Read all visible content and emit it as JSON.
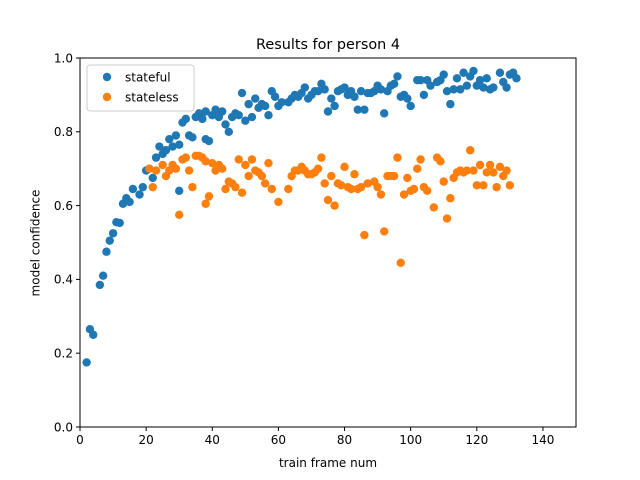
{
  "chart_data": {
    "type": "scatter",
    "title": "Results for person 4",
    "xlabel": "train frame num",
    "ylabel": "model confidence",
    "xlim": [
      0,
      150
    ],
    "ylim": [
      0.0,
      1.0
    ],
    "xticks": [
      "0",
      "20",
      "40",
      "60",
      "80",
      "100",
      "120",
      "140"
    ],
    "yticks": [
      "0.0",
      "0.2",
      "0.4",
      "0.6",
      "0.8",
      "1.0"
    ],
    "grid": false,
    "legend_position": "top-left",
    "series": [
      {
        "name": "stateful",
        "color": "#1f77b4",
        "points": [
          [
            2,
            0.175
          ],
          [
            3,
            0.265
          ],
          [
            4,
            0.25
          ],
          [
            6,
            0.385
          ],
          [
            7,
            0.41
          ],
          [
            8,
            0.475
          ],
          [
            9,
            0.505
          ],
          [
            10,
            0.525
          ],
          [
            11,
            0.555
          ],
          [
            12,
            0.553
          ],
          [
            13,
            0.605
          ],
          [
            14,
            0.62
          ],
          [
            15,
            0.61
          ],
          [
            16,
            0.645
          ],
          [
            18,
            0.63
          ],
          [
            19,
            0.65
          ],
          [
            20,
            0.695
          ],
          [
            21,
            0.7
          ],
          [
            22,
            0.675
          ],
          [
            23,
            0.73
          ],
          [
            24,
            0.76
          ],
          [
            25,
            0.74
          ],
          [
            26,
            0.75
          ],
          [
            27,
            0.78
          ],
          [
            28,
            0.76
          ],
          [
            29,
            0.79
          ],
          [
            30,
            0.765
          ],
          [
            30,
            0.64
          ],
          [
            31,
            0.825
          ],
          [
            32,
            0.835
          ],
          [
            33,
            0.79
          ],
          [
            34,
            0.785
          ],
          [
            35,
            0.84
          ],
          [
            36,
            0.85
          ],
          [
            37,
            0.835
          ],
          [
            38,
            0.855
          ],
          [
            38,
            0.78
          ],
          [
            39,
            0.775
          ],
          [
            40,
            0.845
          ],
          [
            41,
            0.86
          ],
          [
            42,
            0.84
          ],
          [
            43,
            0.855
          ],
          [
            44,
            0.82
          ],
          [
            45,
            0.8
          ],
          [
            46,
            0.84
          ],
          [
            47,
            0.85
          ],
          [
            48,
            0.845
          ],
          [
            49,
            0.905
          ],
          [
            50,
            0.83
          ],
          [
            51,
            0.875
          ],
          [
            52,
            0.84
          ],
          [
            53,
            0.89
          ],
          [
            54,
            0.865
          ],
          [
            55,
            0.875
          ],
          [
            56,
            0.87
          ],
          [
            57,
            0.845
          ],
          [
            58,
            0.91
          ],
          [
            59,
            0.895
          ],
          [
            60,
            0.87
          ],
          [
            61,
            0.88
          ],
          [
            63,
            0.88
          ],
          [
            64,
            0.89
          ],
          [
            65,
            0.9
          ],
          [
            66,
            0.895
          ],
          [
            67,
            0.905
          ],
          [
            68,
            0.92
          ],
          [
            69,
            0.89
          ],
          [
            70,
            0.9
          ],
          [
            71,
            0.91
          ],
          [
            72,
            0.91
          ],
          [
            73,
            0.93
          ],
          [
            74,
            0.915
          ],
          [
            75,
            0.855
          ],
          [
            76,
            0.89
          ],
          [
            77,
            0.87
          ],
          [
            78,
            0.91
          ],
          [
            79,
            0.915
          ],
          [
            80,
            0.92
          ],
          [
            81,
            0.9
          ],
          [
            82,
            0.91
          ],
          [
            83,
            0.895
          ],
          [
            84,
            0.86
          ],
          [
            85,
            0.91
          ],
          [
            86,
            0.86
          ],
          [
            87,
            0.905
          ],
          [
            88,
            0.905
          ],
          [
            89,
            0.91
          ],
          [
            90,
            0.925
          ],
          [
            91,
            0.915
          ],
          [
            92,
            0.85
          ],
          [
            93,
            0.91
          ],
          [
            94,
            0.925
          ],
          [
            95,
            0.93
          ],
          [
            96,
            0.95
          ],
          [
            97,
            0.895
          ],
          [
            98,
            0.9
          ],
          [
            99,
            0.89
          ],
          [
            100,
            0.87
          ],
          [
            102,
            0.94
          ],
          [
            103,
            0.94
          ],
          [
            104,
            0.9
          ],
          [
            105,
            0.94
          ],
          [
            106,
            0.925
          ],
          [
            108,
            0.935
          ],
          [
            109,
            0.94
          ],
          [
            110,
            0.955
          ],
          [
            111,
            0.91
          ],
          [
            112,
            0.875
          ],
          [
            113,
            0.915
          ],
          [
            114,
            0.945
          ],
          [
            115,
            0.915
          ],
          [
            116,
            0.96
          ],
          [
            117,
            0.925
          ],
          [
            118,
            0.95
          ],
          [
            119,
            0.965
          ],
          [
            120,
            0.925
          ],
          [
            121,
            0.94
          ],
          [
            122,
            0.92
          ],
          [
            123,
            0.945
          ],
          [
            124,
            0.915
          ],
          [
            125,
            0.92
          ],
          [
            127,
            0.96
          ],
          [
            128,
            0.935
          ],
          [
            129,
            0.92
          ],
          [
            130,
            0.955
          ],
          [
            131,
            0.96
          ],
          [
            132,
            0.945
          ]
        ]
      },
      {
        "name": "stateless",
        "color": "#ff7f0e",
        "points": [
          [
            21,
            0.7
          ],
          [
            22,
            0.65
          ],
          [
            23,
            0.695
          ],
          [
            25,
            0.71
          ],
          [
            26,
            0.68
          ],
          [
            27,
            0.695
          ],
          [
            28,
            0.71
          ],
          [
            29,
            0.7
          ],
          [
            30,
            0.575
          ],
          [
            31,
            0.725
          ],
          [
            32,
            0.73
          ],
          [
            33,
            0.695
          ],
          [
            34,
            0.65
          ],
          [
            35,
            0.735
          ],
          [
            36,
            0.735
          ],
          [
            37,
            0.73
          ],
          [
            38,
            0.72
          ],
          [
            38,
            0.605
          ],
          [
            39,
            0.625
          ],
          [
            40,
            0.715
          ],
          [
            41,
            0.695
          ],
          [
            42,
            0.71
          ],
          [
            43,
            0.7
          ],
          [
            44,
            0.645
          ],
          [
            45,
            0.665
          ],
          [
            46,
            0.66
          ],
          [
            47,
            0.65
          ],
          [
            48,
            0.725
          ],
          [
            49,
            0.635
          ],
          [
            50,
            0.71
          ],
          [
            51,
            0.68
          ],
          [
            52,
            0.725
          ],
          [
            53,
            0.695
          ],
          [
            54,
            0.69
          ],
          [
            55,
            0.68
          ],
          [
            56,
            0.66
          ],
          [
            57,
            0.715
          ],
          [
            58,
            0.645
          ],
          [
            60,
            0.61
          ],
          [
            63,
            0.645
          ],
          [
            64,
            0.68
          ],
          [
            65,
            0.695
          ],
          [
            66,
            0.695
          ],
          [
            67,
            0.705
          ],
          [
            68,
            0.695
          ],
          [
            69,
            0.685
          ],
          [
            70,
            0.685
          ],
          [
            71,
            0.69
          ],
          [
            72,
            0.7
          ],
          [
            73,
            0.73
          ],
          [
            74,
            0.66
          ],
          [
            75,
            0.615
          ],
          [
            76,
            0.68
          ],
          [
            77,
            0.6
          ],
          [
            78,
            0.66
          ],
          [
            79,
            0.655
          ],
          [
            80,
            0.705
          ],
          [
            81,
            0.65
          ],
          [
            82,
            0.645
          ],
          [
            83,
            0.685
          ],
          [
            84,
            0.645
          ],
          [
            85,
            0.65
          ],
          [
            86,
            0.52
          ],
          [
            87,
            0.66
          ],
          [
            89,
            0.665
          ],
          [
            90,
            0.65
          ],
          [
            91,
            0.63
          ],
          [
            92,
            0.53
          ],
          [
            93,
            0.68
          ],
          [
            94,
            0.68
          ],
          [
            95,
            0.68
          ],
          [
            96,
            0.73
          ],
          [
            97,
            0.445
          ],
          [
            98,
            0.63
          ],
          [
            99,
            0.675
          ],
          [
            100,
            0.64
          ],
          [
            101,
            0.645
          ],
          [
            102,
            0.7
          ],
          [
            103,
            0.725
          ],
          [
            104,
            0.65
          ],
          [
            105,
            0.64
          ],
          [
            107,
            0.595
          ],
          [
            108,
            0.73
          ],
          [
            109,
            0.72
          ],
          [
            110,
            0.665
          ],
          [
            111,
            0.565
          ],
          [
            112,
            0.62
          ],
          [
            113,
            0.675
          ],
          [
            114,
            0.69
          ],
          [
            115,
            0.695
          ],
          [
            116,
            0.69
          ],
          [
            117,
            0.695
          ],
          [
            118,
            0.75
          ],
          [
            119,
            0.695
          ],
          [
            120,
            0.655
          ],
          [
            121,
            0.71
          ],
          [
            122,
            0.655
          ],
          [
            123,
            0.69
          ],
          [
            124,
            0.71
          ],
          [
            125,
            0.69
          ],
          [
            126,
            0.65
          ],
          [
            127,
            0.705
          ],
          [
            128,
            0.68
          ],
          [
            129,
            0.695
          ],
          [
            130,
            0.655
          ]
        ]
      }
    ]
  }
}
